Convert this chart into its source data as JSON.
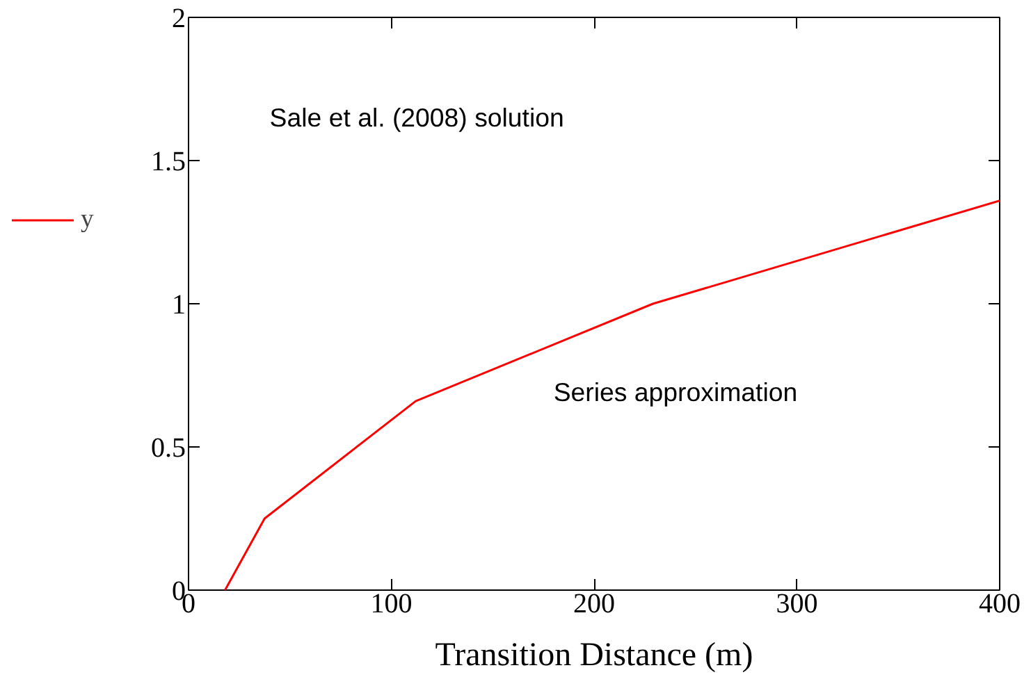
{
  "chart_data": {
    "type": "line",
    "xlabel": "Transition Distance (m)",
    "x": [
      18,
      37.5,
      112,
      229,
      400
    ],
    "series": [
      {
        "name": "y",
        "color": "#ff0000",
        "values": [
          0,
          0.25,
          0.66,
          1.0,
          1.36
        ]
      }
    ],
    "xlim": [
      0,
      400
    ],
    "ylim": [
      0,
      2
    ],
    "xticks": [
      0,
      100,
      200,
      300,
      400
    ],
    "yticks": [
      0,
      0.5,
      1,
      1.5,
      2
    ],
    "annotations": [
      "Sale et al. (2008) solution",
      "Series approximation"
    ],
    "grid": false,
    "legend": "left",
    "marker": "none",
    "line_style": "solid"
  }
}
